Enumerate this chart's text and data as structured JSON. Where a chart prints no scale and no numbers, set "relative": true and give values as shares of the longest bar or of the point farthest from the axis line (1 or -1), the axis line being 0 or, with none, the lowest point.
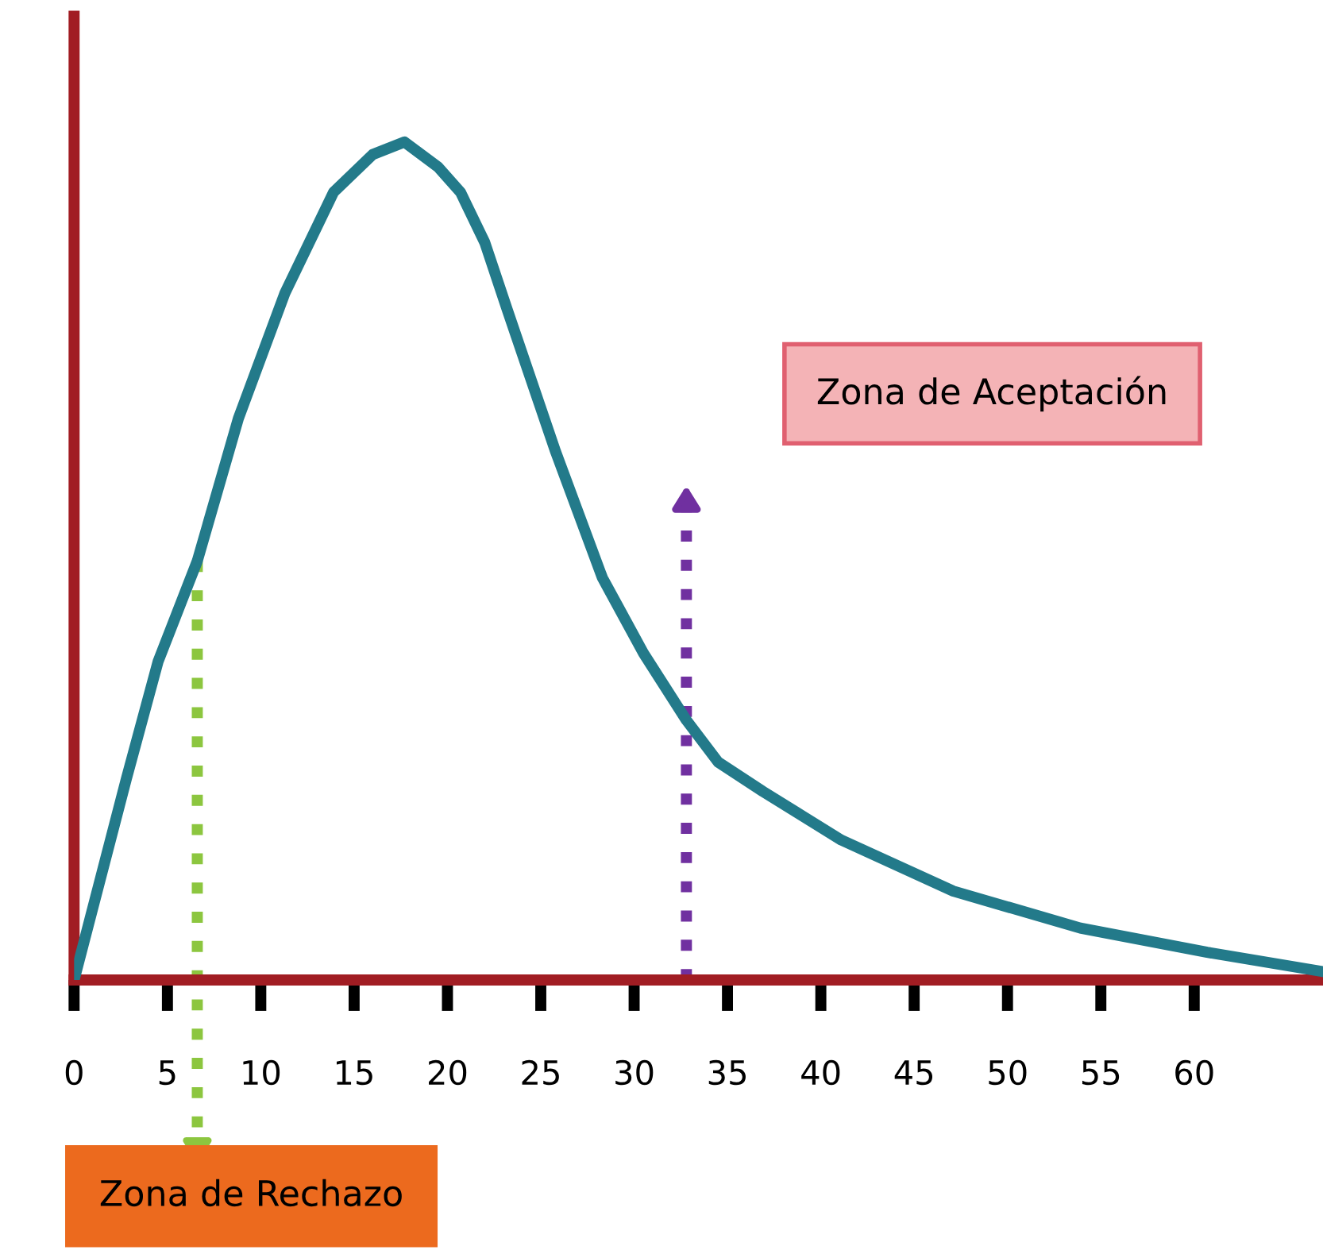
{
  "chart_data": {
    "type": "line",
    "relative": true,
    "x": [
      0,
      2.8,
      4.5,
      6.6,
      8.8,
      11.3,
      13.9,
      16,
      17.7,
      19.5,
      20.7,
      22,
      23.2,
      25.8,
      28.3,
      30.5,
      32.8,
      34.5,
      36.9,
      41.1,
      47.1,
      53.9,
      60.7,
      66.9
    ],
    "series": [
      {
        "color": "#237a8a",
        "values": [
          0,
          0.24,
          0.38,
          0.5,
          0.67,
          0.82,
          0.94,
          0.985,
          1.0,
          0.97,
          0.94,
          0.88,
          0.8,
          0.63,
          0.48,
          0.39,
          0.31,
          0.26,
          0.225,
          0.167,
          0.106,
          0.062,
          0.033,
          0.01
        ]
      }
    ],
    "xlim": [
      0,
      66.9
    ],
    "xticks": [
      0,
      5,
      10,
      15,
      20,
      25,
      30,
      35,
      40,
      45,
      50,
      55,
      60
    ],
    "ref_lines": [
      {
        "axis": "x",
        "value": 6.6,
        "color": "#8cc63f",
        "line_style": "dotted"
      },
      {
        "axis": "x",
        "value": 32.8,
        "color": "#7030a0",
        "line_style": "dotted"
      }
    ],
    "annotations": [
      "Zona de Aceptación",
      "Zona de Rechazo"
    ],
    "grid": false,
    "legend": false,
    "marker": "none",
    "line_style": "solid"
  }
}
